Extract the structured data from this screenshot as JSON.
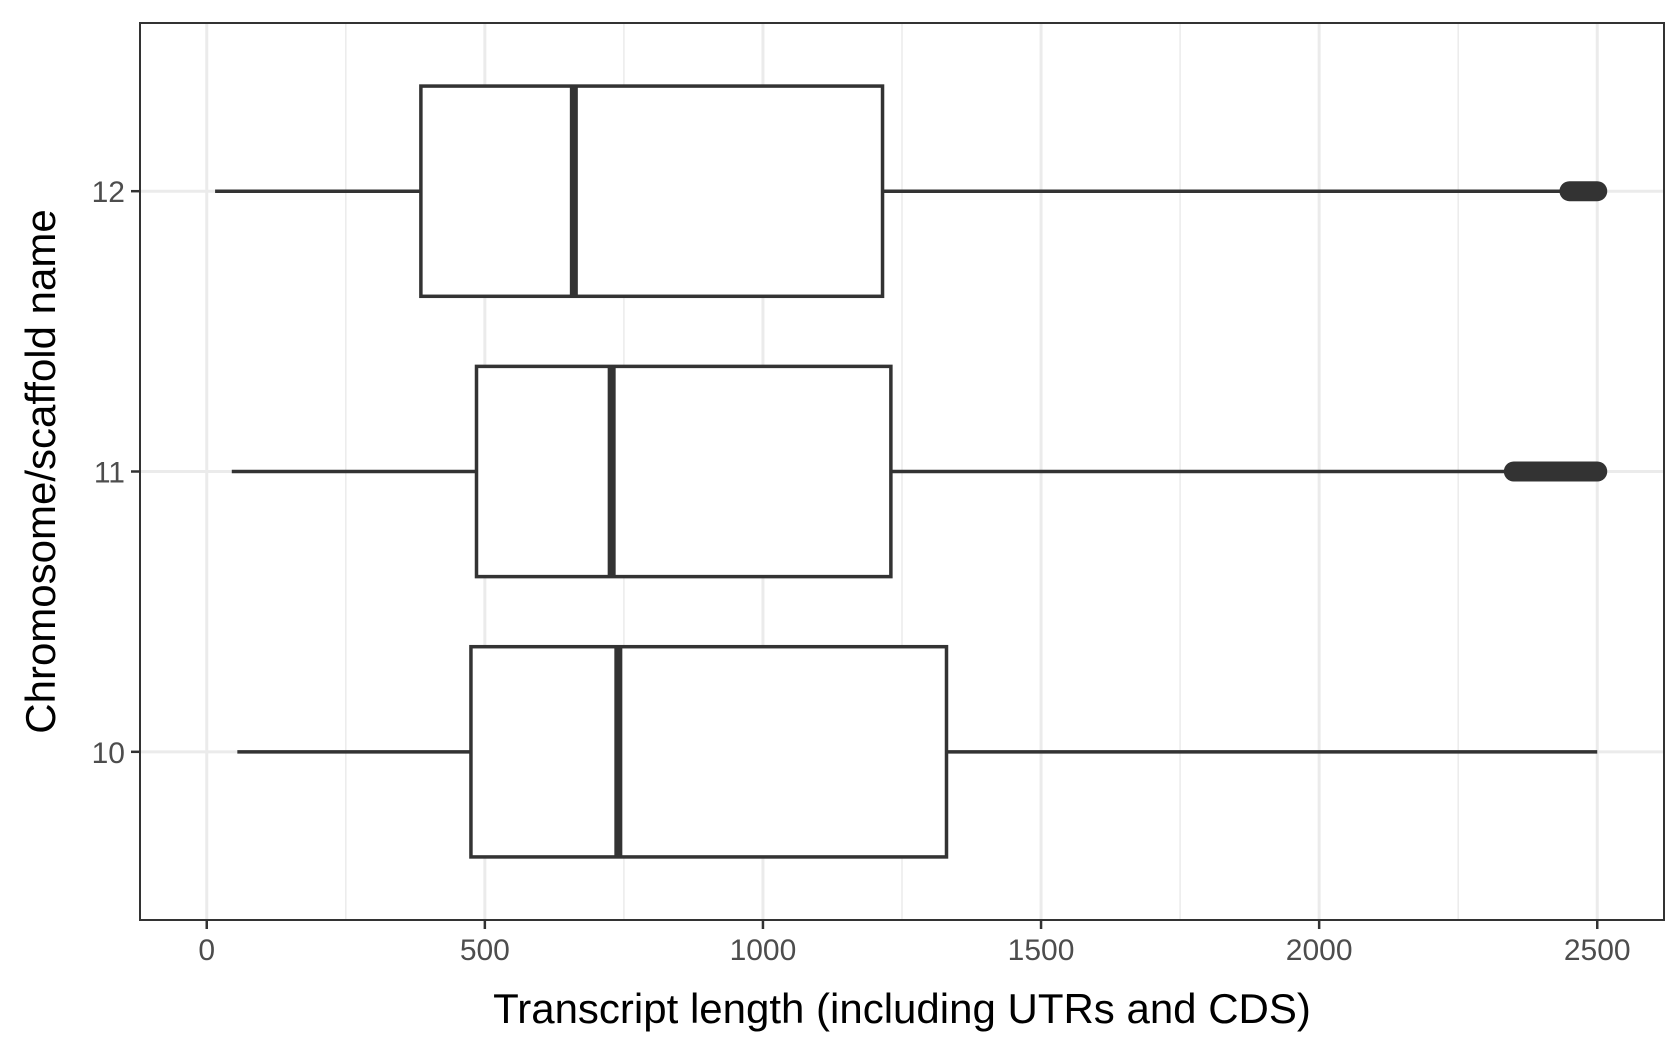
{
  "chart_data": {
    "type": "boxplot",
    "orientation": "horizontal",
    "xlabel": "Transcript length (including UTRs and CDS)",
    "ylabel": "Chromosome/scaffold name",
    "xlim": [
      -120,
      2620
    ],
    "x_ticks": [
      0,
      500,
      1000,
      1500,
      2000,
      2500
    ],
    "x_tick_labels": [
      "0",
      "500",
      "1000",
      "1500",
      "2000",
      "2500"
    ],
    "x_minor_ticks": [
      250,
      750,
      1250,
      1750,
      2250
    ],
    "categories": [
      "10",
      "11",
      "12"
    ],
    "boxes": [
      {
        "category": "10",
        "whisker_low": 55,
        "q1": 475,
        "median": 740,
        "q3": 1330,
        "whisker_high": 2500,
        "outliers_from": null,
        "outliers_to": null
      },
      {
        "category": "11",
        "whisker_low": 45,
        "q1": 485,
        "median": 728,
        "q3": 1230,
        "whisker_high": 2350,
        "outliers_from": 2350,
        "outliers_to": 2500
      },
      {
        "category": "12",
        "whisker_low": 15,
        "q1": 385,
        "median": 660,
        "q3": 1215,
        "whisker_high": 2450,
        "outliers_from": 2450,
        "outliers_to": 2500
      }
    ],
    "grid": true,
    "legend": "none",
    "colors": {
      "box_stroke": "#333333",
      "grid": "#ebebeb",
      "panel_border": "#333333",
      "background": "#ffffff"
    }
  }
}
